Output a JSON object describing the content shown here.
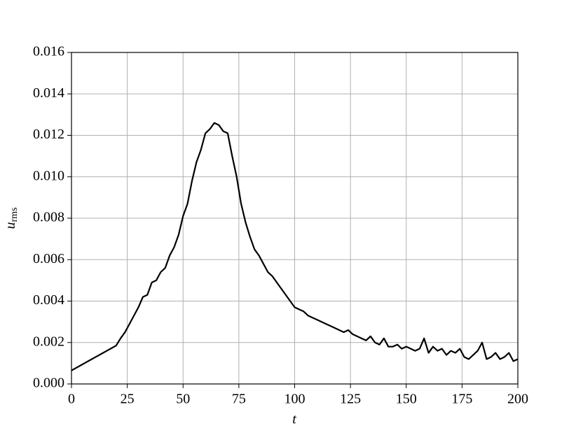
{
  "chart_data": {
    "type": "line",
    "xlabel": "t",
    "ylabel": "u",
    "ylabel_sub": "rms",
    "x": [
      0,
      2,
      4,
      6,
      8,
      10,
      12,
      14,
      16,
      18,
      20,
      22,
      24,
      26,
      28,
      30,
      32,
      34,
      36,
      38,
      40,
      42,
      44,
      46,
      48,
      50,
      52,
      54,
      56,
      58,
      60,
      62,
      64,
      66,
      68,
      70,
      72,
      74,
      76,
      78,
      80,
      82,
      84,
      86,
      88,
      90,
      92,
      94,
      96,
      98,
      100,
      102,
      104,
      106,
      108,
      110,
      112,
      114,
      116,
      118,
      120,
      122,
      124,
      126,
      128,
      130,
      132,
      134,
      136,
      138,
      140,
      142,
      144,
      146,
      148,
      150,
      152,
      154,
      156,
      158,
      160,
      162,
      164,
      166,
      168,
      170,
      172,
      174,
      176,
      178,
      180,
      182,
      184,
      186,
      188,
      190,
      192,
      194,
      196,
      198,
      200
    ],
    "series": [
      {
        "color": "#000000",
        "values": [
          0.00065,
          0.00077,
          0.00089,
          0.00101,
          0.00113,
          0.00125,
          0.00137,
          0.00149,
          0.00161,
          0.00173,
          0.00185,
          0.0022,
          0.0025,
          0.0029,
          0.0033,
          0.0037,
          0.0042,
          0.0043,
          0.0049,
          0.005,
          0.0054,
          0.0056,
          0.0062,
          0.0066,
          0.0072,
          0.0081,
          0.0087,
          0.0098,
          0.0107,
          0.0113,
          0.0121,
          0.0123,
          0.0126,
          0.0125,
          0.0122,
          0.0121,
          0.011,
          0.01,
          0.0087,
          0.0078,
          0.0071,
          0.0065,
          0.0062,
          0.0058,
          0.0054,
          0.0052,
          0.0049,
          0.0046,
          0.0043,
          0.004,
          0.0037,
          0.0036,
          0.0035,
          0.0033,
          0.0032,
          0.0031,
          0.003,
          0.0029,
          0.0028,
          0.0027,
          0.0026,
          0.0025,
          0.0026,
          0.0024,
          0.0023,
          0.0022,
          0.0021,
          0.0023,
          0.002,
          0.0019,
          0.0022,
          0.0018,
          0.0018,
          0.0019,
          0.0017,
          0.0018,
          0.0017,
          0.0016,
          0.0017,
          0.0022,
          0.0015,
          0.0018,
          0.0016,
          0.0017,
          0.0014,
          0.0016,
          0.0015,
          0.0017,
          0.0013,
          0.0012,
          0.0014,
          0.0016,
          0.002,
          0.0012,
          0.0013,
          0.0015,
          0.0012,
          0.0013,
          0.0015,
          0.0011,
          0.0012
        ]
      }
    ],
    "xlim": [
      0,
      200
    ],
    "xticks": [
      0,
      25,
      50,
      75,
      100,
      125,
      150,
      175,
      200
    ],
    "ylim": [
      0,
      0.016
    ],
    "yticks": [
      {
        "value": 0,
        "label": "0.000"
      },
      {
        "value": 0.002,
        "label": "0.002"
      },
      {
        "value": 0.004,
        "label": "0.004"
      },
      {
        "value": 0.006,
        "label": "0.006"
      },
      {
        "value": 0.008,
        "label": "0.008"
      },
      {
        "value": 0.01,
        "label": "0.010"
      },
      {
        "value": 0.012,
        "label": "0.012"
      },
      {
        "value": 0.014,
        "label": "0.014"
      },
      {
        "value": 0.016,
        "label": "0.016"
      }
    ],
    "grid": true
  }
}
